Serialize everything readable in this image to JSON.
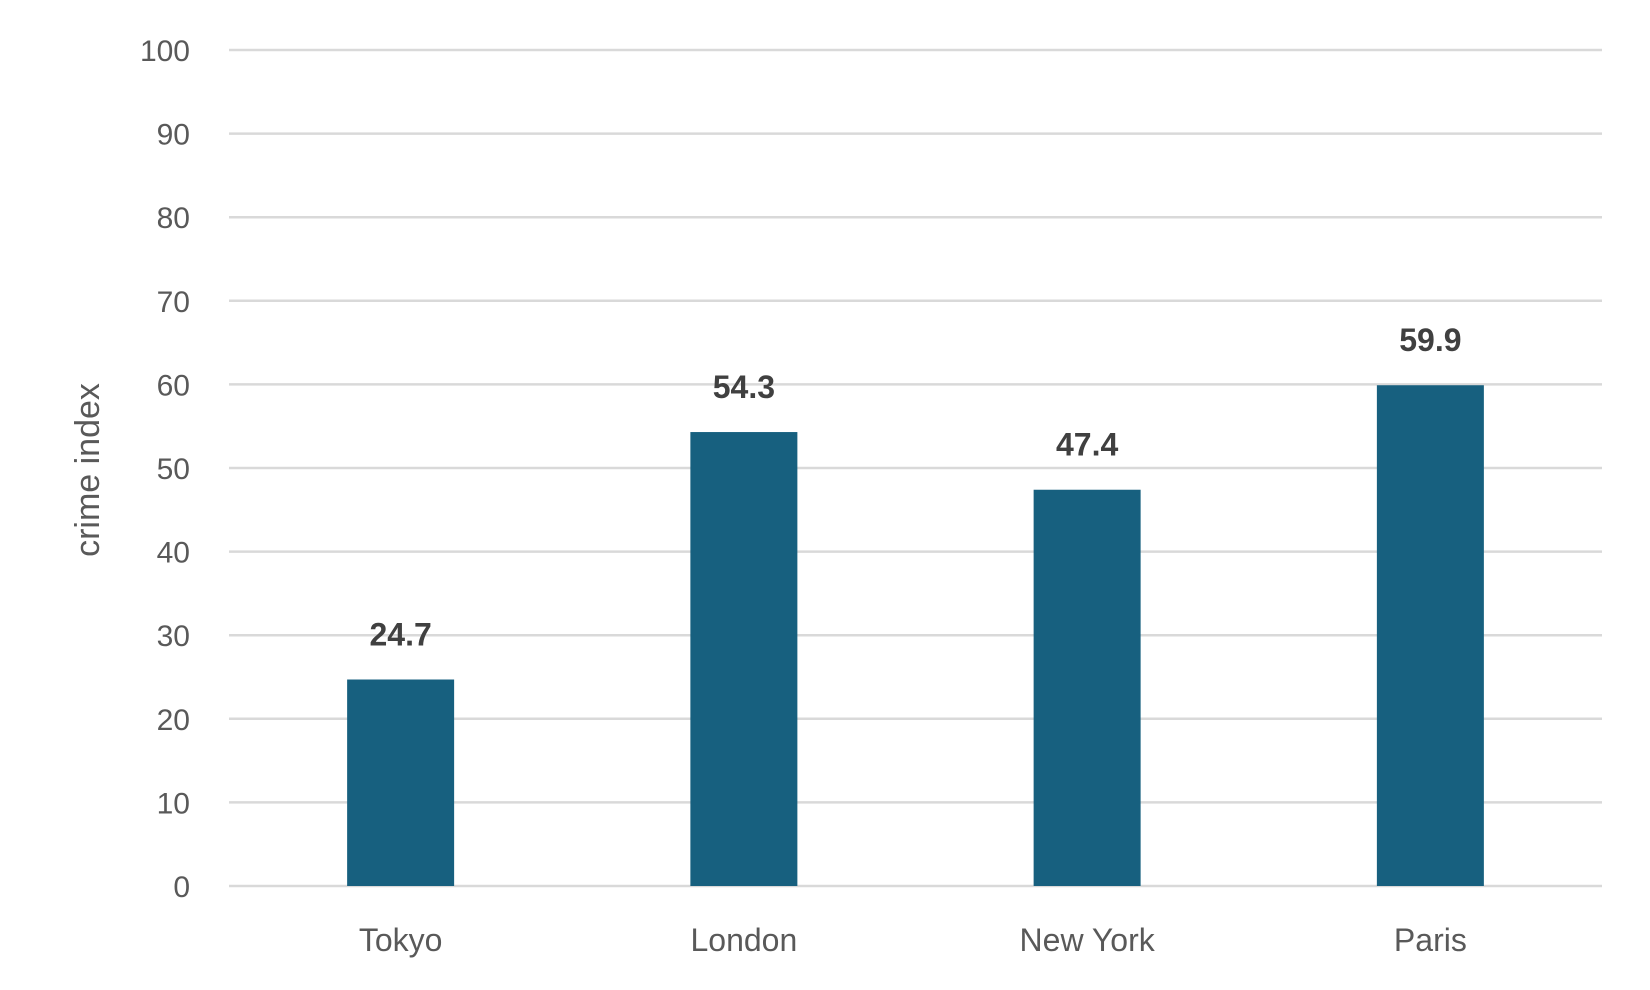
{
  "chart_data": {
    "type": "bar",
    "categories": [
      "Tokyo",
      "London",
      "New York",
      "Paris"
    ],
    "values": [
      24.7,
      54.3,
      47.4,
      59.9
    ],
    "data_labels": [
      "24.7",
      "54.3",
      "47.4",
      "59.9"
    ],
    "title": "",
    "xlabel": "",
    "ylabel": "crime index",
    "ylim": [
      0,
      100
    ],
    "yticks": [
      0,
      10,
      20,
      30,
      40,
      50,
      60,
      70,
      80,
      90,
      100
    ],
    "ytick_labels": [
      "0",
      "10",
      "20",
      "30",
      "40",
      "50",
      "60",
      "70",
      "80",
      "90",
      "100"
    ],
    "grid": true,
    "legend": "none",
    "bar_color": "#17607f",
    "grid_color": "#d9d9d9"
  }
}
